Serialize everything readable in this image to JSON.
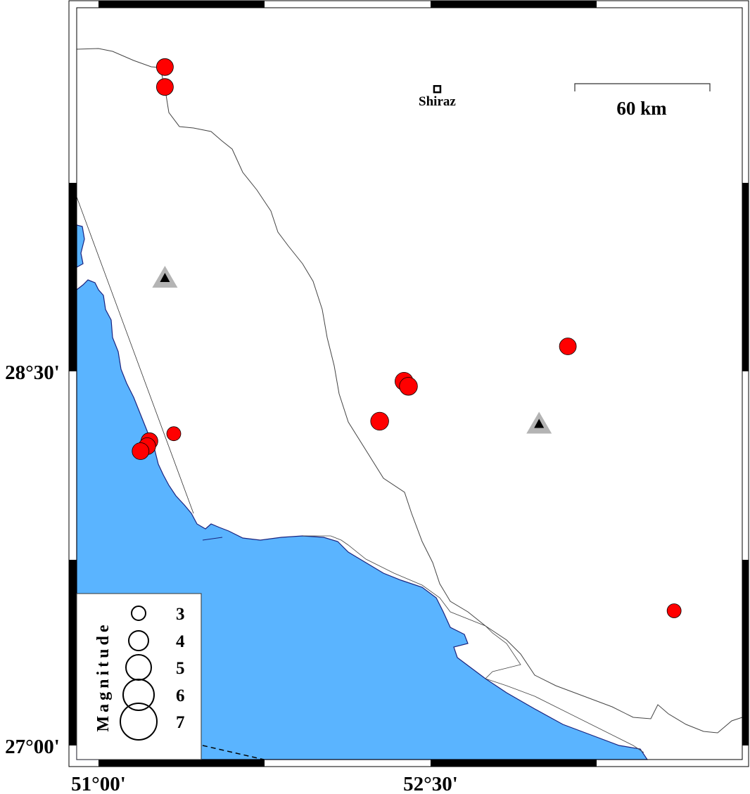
{
  "map": {
    "sea_color": "#5ab4ff",
    "land_color": "#ffffff",
    "event_color": "#ff0000",
    "station_color": "#000000",
    "station_halo_color": "#b4b4b4",
    "x_ticks": [
      {
        "lon": 51.0,
        "label": "51°00'"
      },
      {
        "lon": 52.5,
        "label": "52°30'"
      }
    ],
    "y_ticks": [
      {
        "lat": 28.5,
        "label": "28°30'"
      },
      {
        "lat": 27.0,
        "label": "27°00'"
      }
    ],
    "city": {
      "name": "Shiraz",
      "lon": 52.53,
      "lat": 29.63
    },
    "scale_bar": {
      "label": "60 km"
    },
    "legend": {
      "title": "Magnitude",
      "entries": [
        {
          "mag": 3,
          "label": "3"
        },
        {
          "mag": 4,
          "label": "4"
        },
        {
          "mag": 5,
          "label": "5"
        },
        {
          "mag": 6,
          "label": "6"
        },
        {
          "mag": 7,
          "label": "7"
        }
      ]
    },
    "events": [
      {
        "lon": 51.3,
        "lat": 29.72,
        "mag": 3.5
      },
      {
        "lon": 51.3,
        "lat": 29.64,
        "mag": 3.5
      },
      {
        "lon": 53.12,
        "lat": 28.6,
        "mag": 3.5
      },
      {
        "lon": 52.38,
        "lat": 28.46,
        "mag": 3.7
      },
      {
        "lon": 52.4,
        "lat": 28.44,
        "mag": 3.7
      },
      {
        "lon": 52.27,
        "lat": 28.3,
        "mag": 3.7
      },
      {
        "lon": 51.34,
        "lat": 28.25,
        "mag": 3.0
      },
      {
        "lon": 51.23,
        "lat": 28.22,
        "mag": 3.5
      },
      {
        "lon": 51.22,
        "lat": 28.2,
        "mag": 3.5
      },
      {
        "lon": 51.19,
        "lat": 28.18,
        "mag": 3.5
      },
      {
        "lon": 53.6,
        "lat": 27.54,
        "mag": 3.0
      }
    ],
    "stations": [
      {
        "lon": 51.3,
        "lat": 28.875
      },
      {
        "lon": 52.99,
        "lat": 28.29
      }
    ]
  }
}
